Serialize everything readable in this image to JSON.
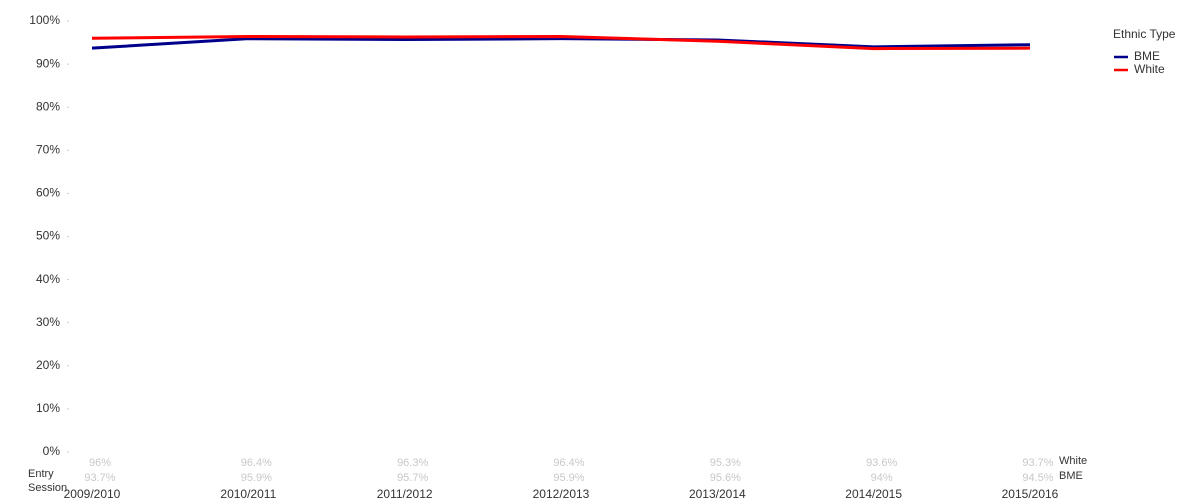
{
  "chart_data": {
    "type": "line",
    "x_label": "Entry Session",
    "legend_title": "Ethnic Type",
    "legend": "top-right",
    "categories": [
      "2009/2010",
      "2010/2011",
      "2011/2012",
      "2012/2013",
      "2013/2014",
      "2014/2015",
      "2015/2016"
    ],
    "series": [
      {
        "name": "BME",
        "color": "#00008b",
        "values": [
          93.7,
          95.9,
          95.7,
          95.9,
          95.6,
          94,
          94.5
        ],
        "value_labels": [
          "93.7%",
          "95.9%",
          "95.7%",
          "95.9%",
          "95.6%",
          "94%",
          "94.5%"
        ]
      },
      {
        "name": "White",
        "color": "#ff0000",
        "values": [
          96,
          96.4,
          96.3,
          96.4,
          95.3,
          93.6,
          93.7
        ],
        "value_labels": [
          "96%",
          "96.4%",
          "96.3%",
          "96.4%",
          "95.3%",
          "93.6%",
          "93.7%"
        ]
      }
    ],
    "ylim": [
      0,
      100
    ],
    "yticks": [
      {
        "value": 0,
        "label": "0%"
      },
      {
        "value": 10,
        "label": "10%"
      },
      {
        "value": 20,
        "label": "20%"
      },
      {
        "value": 30,
        "label": "30%"
      },
      {
        "value": 40,
        "label": "40%"
      },
      {
        "value": 50,
        "label": "50%"
      },
      {
        "value": 60,
        "label": "60%"
      },
      {
        "value": 70,
        "label": "70%"
      },
      {
        "value": 80,
        "label": "80%"
      },
      {
        "value": 90,
        "label": "90%"
      },
      {
        "value": 100,
        "label": "100%"
      }
    ],
    "grid": false
  }
}
